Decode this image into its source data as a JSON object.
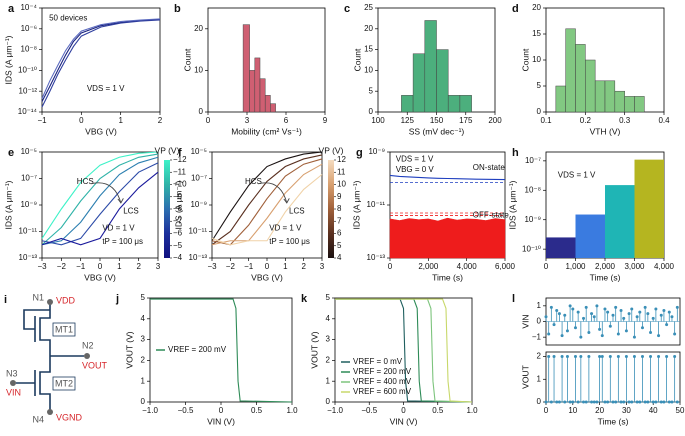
{
  "chart_data": [
    {
      "type": "line",
      "panel": "a",
      "xlabel": "VBG (V)",
      "ylabel": "IDS (A μm⁻¹)",
      "ylog": true,
      "xlim": [
        -1,
        2
      ],
      "xticks": [
        {
          "value": -1,
          "label": "−1"
        },
        0,
        1,
        2
      ],
      "ylim": [
        1e-14,
        0.0001
      ],
      "yticks": [
        {
          "value": 1e-14,
          "label": "10⁻¹⁴"
        },
        {
          "value": 1e-12,
          "label": "10⁻¹²"
        },
        {
          "value": 1e-10,
          "label": "10⁻¹⁰"
        },
        {
          "value": 1e-08,
          "label": "10⁻⁸"
        },
        {
          "value": 1e-06,
          "label": "10⁻⁶"
        },
        {
          "value": 0.0001,
          "label": "10⁻⁴"
        }
      ],
      "x": [
        -1,
        -0.8,
        -0.6,
        -0.4,
        -0.2,
        0,
        0.5,
        1,
        1.5,
        2
      ],
      "series": [
        {
          "color": "#1a237e",
          "values": [
            1e-13,
            3e-12,
            1e-10,
            3e-09,
            6e-08,
            4e-07,
            2e-06,
            4e-06,
            6e-06,
            8e-06
          ]
        },
        {
          "color": "#303f9f",
          "values": [
            3e-14,
            1e-12,
            4e-11,
            1e-09,
            2e-08,
            2e-07,
            1.5e-06,
            3.5e-06,
            5.5e-06,
            7e-06
          ]
        },
        {
          "color": "#5c6bc0",
          "values": [
            2e-13,
            1e-11,
            3e-10,
            8e-09,
            1e-07,
            6e-07,
            2.5e-06,
            5e-06,
            7e-06,
            9e-06
          ]
        }
      ],
      "annotations": [
        "50 devices",
        "VDS = 1 V"
      ]
    },
    {
      "type": "histogram",
      "panel": "b",
      "xlabel": "Mobility (cm² Vs⁻¹)",
      "ylabel": "Count",
      "xlim": [
        0,
        9
      ],
      "xticks": [
        0,
        3,
        6,
        9
      ],
      "ylim": [
        0,
        25
      ],
      "yticks": [
        0,
        10,
        20
      ],
      "bins": [
        2.7,
        3.2,
        3.6,
        4.0,
        4.4,
        4.8,
        5.2
      ],
      "values": [
        21,
        10,
        13,
        8,
        4,
        2
      ],
      "color": "#cf5f72"
    },
    {
      "type": "histogram",
      "panel": "c",
      "xlabel": "SS (mV dec⁻¹)",
      "ylabel": "Count",
      "xlim": [
        100,
        200
      ],
      "xticks": [
        100,
        125,
        150,
        175,
        200
      ],
      "ylim": [
        0,
        25
      ],
      "yticks": [
        0,
        5,
        10,
        15,
        20,
        25
      ],
      "bins": [
        120,
        130,
        140,
        150,
        160,
        170,
        180
      ],
      "values": [
        4,
        14,
        22,
        15,
        4,
        4
      ],
      "color": "#4caf7d"
    },
    {
      "type": "histogram",
      "panel": "d",
      "xlabel": "VTH (V)",
      "ylabel": "Count",
      "xlim": [
        0.1,
        0.4
      ],
      "xticks": [
        0.1,
        0.2,
        0.3,
        0.4
      ],
      "ylim": [
        0,
        20
      ],
      "yticks": [
        0,
        5,
        10,
        15,
        20
      ],
      "bins": [
        0.125,
        0.15,
        0.175,
        0.2,
        0.225,
        0.25,
        0.275,
        0.3,
        0.325,
        0.35
      ],
      "values": [
        5,
        16,
        13,
        10,
        6,
        6,
        4,
        3,
        3
      ],
      "color": "#82c882"
    },
    {
      "type": "line",
      "panel": "e",
      "xlabel": "VBG (V)",
      "ylabel": "IDS (A μm⁻¹)",
      "ylog": true,
      "xlim": [
        -3,
        3
      ],
      "xticks": [
        {
          "value": -3,
          "label": "−3"
        },
        {
          "value": -2,
          "label": "−2"
        },
        {
          "value": -1,
          "label": "−1"
        },
        0,
        1,
        2,
        3
      ],
      "ylim": [
        1e-13,
        1e-05
      ],
      "yticks": [
        {
          "value": 1e-13,
          "label": "10⁻¹³"
        },
        {
          "value": 1e-11,
          "label": "10⁻¹¹"
        },
        {
          "value": 1e-09,
          "label": "10⁻⁹"
        },
        {
          "value": 1e-07,
          "label": "10⁻⁷"
        },
        {
          "value": 1e-05,
          "label": "10⁻⁵"
        }
      ],
      "x": [
        -3,
        -2,
        -1,
        0,
        1,
        2,
        3
      ],
      "series": [
        {
          "color": "#3ef2c8",
          "values": [
            3e-12,
            5e-10,
            5e-08,
            1e-06,
            4e-06,
            8e-06,
            1e-05
          ]
        },
        {
          "color": "#2fb3a8",
          "values": [
            1e-12,
            2e-11,
            2e-09,
            1e-07,
            1e-06,
            4e-06,
            7e-06
          ]
        },
        {
          "color": "#2c7fb0",
          "values": [
            1e-12,
            2e-12,
            5e-11,
            5e-09,
            2e-07,
            1.5e-06,
            4e-06
          ]
        },
        {
          "color": "#2c4ba8",
          "values": [
            2e-12,
            1e-12,
            3e-12,
            2e-10,
            1e-08,
            3e-07,
            1.5e-06
          ]
        },
        {
          "color": "#1a1a9c",
          "values": [
            1e-12,
            3e-12,
            1e-12,
            3e-12,
            5e-10,
            2e-08,
            3e-07
          ]
        }
      ],
      "annotations": [
        "HCS",
        "LCS",
        "VD = 1 V",
        "tP = 100 μs"
      ],
      "colorbar": {
        "title": "VP (V)",
        "lim": [
          -12,
          -4
        ],
        "colors": [
          "#3ef2c8",
          "#2fb3a8",
          "#2c6fb0",
          "#1c2f9c",
          "#101080"
        ],
        "ticks": [
          {
            "value": -12,
            "label": "−12"
          },
          {
            "value": -11,
            "label": "−11"
          },
          {
            "value": -10,
            "label": "−10"
          },
          {
            "value": -9,
            "label": "−9"
          },
          {
            "value": -8,
            "label": "−8"
          },
          {
            "value": -7,
            "label": "−7"
          },
          {
            "value": -6,
            "label": "−6"
          },
          {
            "value": -5,
            "label": "−5"
          },
          {
            "value": -4,
            "label": "−4"
          }
        ]
      }
    },
    {
      "type": "line",
      "panel": "f",
      "xlabel": "VBG (V)",
      "ylabel": "IDS (A μm⁻¹)",
      "ylog": true,
      "xlim": [
        -3,
        3
      ],
      "xticks": [
        {
          "value": -3,
          "label": "−3"
        },
        {
          "value": -2,
          "label": "−2"
        },
        {
          "value": -1,
          "label": "−1"
        },
        0,
        1,
        2,
        3
      ],
      "ylim": [
        1e-13,
        1e-05
      ],
      "yticks": [
        {
          "value": 1e-13,
          "label": "10⁻¹³"
        },
        {
          "value": 1e-11,
          "label": "10⁻¹¹"
        },
        {
          "value": 1e-09,
          "label": "10⁻⁹"
        },
        {
          "value": 1e-07,
          "label": "10⁻⁷"
        },
        {
          "value": 1e-05,
          "label": "10⁻⁵"
        }
      ],
      "x": [
        -3,
        -2,
        -1,
        0,
        1,
        2,
        3
      ],
      "series": [
        {
          "color": "#1a1212",
          "values": [
            2e-12,
            3e-10,
            3e-08,
            8e-07,
            3e-06,
            7e-06,
            1e-05
          ]
        },
        {
          "color": "#5a3020",
          "values": [
            1e-12,
            1e-11,
            1e-09,
            6e-08,
            8e-07,
            3e-06,
            6e-06
          ]
        },
        {
          "color": "#a0603a",
          "values": [
            2e-12,
            1e-12,
            3e-11,
            3e-09,
            1.5e-07,
            1.2e-06,
            3e-06
          ]
        },
        {
          "color": "#d8a070",
          "values": [
            1e-12,
            2e-12,
            2e-12,
            1e-10,
            8e-09,
            2e-07,
            1.2e-06
          ]
        },
        {
          "color": "#f0d2a8",
          "values": [
            3e-12,
            1e-12,
            2e-12,
            2e-12,
            3e-10,
            1.5e-08,
            2e-07
          ]
        }
      ],
      "annotations": [
        "HCS",
        "LCS",
        "VD = 1 V",
        "tP = 100 μs"
      ],
      "colorbar": {
        "title": "VP (V)",
        "lim": [
          12,
          4
        ],
        "colors": [
          "#f5dcc0",
          "#d8a070",
          "#a0603a",
          "#5a3020",
          "#1a1010"
        ],
        "ticks": [
          12,
          11,
          10,
          9,
          8,
          7,
          6,
          5,
          4
        ]
      }
    },
    {
      "type": "line",
      "panel": "g",
      "xlabel": "Time (s)",
      "ylabel": "IDS (A μm⁻¹)",
      "ylog": true,
      "xlim": [
        0,
        6000
      ],
      "xticks": [
        0,
        {
          "value": 2000,
          "label": "2,000"
        },
        {
          "value": 4000,
          "label": "4,000"
        },
        {
          "value": 6000,
          "label": "6,000"
        }
      ],
      "ylim": [
        1e-13,
        1e-09
      ],
      "yticks": [
        {
          "value": 1e-13,
          "label": "10⁻¹³"
        },
        {
          "value": 1e-11,
          "label": "10⁻¹¹"
        },
        {
          "value": 1e-09,
          "label": "10⁻⁹"
        }
      ],
      "x": [
        0,
        500,
        1000,
        1500,
        2000,
        2500,
        3000,
        3500,
        4000,
        4500,
        5000,
        5500,
        6000
      ],
      "series": [
        {
          "color": "#1f3fbf",
          "values": [
            1.3e-10,
            1.2e-10,
            1.15e-10,
            1.1e-10,
            1.05e-10,
            1.02e-10,
            1e-10,
            9.8e-11,
            9.6e-11,
            9.4e-11,
            9.3e-11,
            9.2e-11,
            9.1e-11
          ]
        },
        {
          "color": "#ee1c1c",
          "fill": true,
          "values": [
            3e-12,
            2.6e-12,
            3.1e-12,
            2.8e-12,
            3e-12,
            2.5e-12,
            3.2e-12,
            2.7e-12,
            3e-12,
            2.9e-12,
            2.6e-12,
            3.1e-12,
            2.8e-12
          ]
        }
      ],
      "hlines": [
        {
          "value": 7e-11,
          "color": "#1f3fbf"
        },
        {
          "value": 5e-12,
          "color": "#ee1c1c"
        },
        {
          "value": 4e-12,
          "color": "#ee1c1c"
        }
      ],
      "annotations": [
        "VDS = 1 V",
        "VBG = 0 V",
        "ON-state",
        "OFF-state"
      ]
    },
    {
      "type": "histogram",
      "panel": "h",
      "xlabel": "Time (s)",
      "ylabel": "IDS (A μm⁻¹)",
      "ylog": true,
      "xlim": [
        0,
        4000
      ],
      "xticks": [
        0,
        {
          "value": 1000,
          "label": "1,000"
        },
        {
          "value": 2000,
          "label": "2,000"
        },
        {
          "value": 3000,
          "label": "3,000"
        },
        {
          "value": 4000,
          "label": "4,000"
        }
      ],
      "ylim": [
        5e-11,
        2e-07
      ],
      "yticks": [
        {
          "value": 1e-10,
          "label": "10⁻¹⁰"
        },
        {
          "value": 1e-09,
          "label": "10⁻⁹"
        },
        {
          "value": 1e-08,
          "label": "10⁻⁸"
        },
        {
          "value": 1e-07,
          "label": "10⁻⁷"
        }
      ],
      "bins": [
        0,
        1000,
        2000,
        3000,
        4000
      ],
      "values": [
        2.5e-10,
        1.5e-09,
        1.5e-08,
        1.1e-07
      ],
      "colors": [
        "#2b2b8c",
        "#3a7be0",
        "#1fb5b5",
        "#b5b520"
      ],
      "annotations": [
        "VDS = 1 V"
      ]
    },
    {
      "type": "line",
      "panel": "j",
      "xlabel": "VIN (V)",
      "ylabel": "VOUT (V)",
      "legend": "center-left",
      "xlim": [
        -1,
        1
      ],
      "xticks": [
        {
          "value": -1,
          "label": "−1.0"
        },
        {
          "value": -0.5,
          "label": "−0.5"
        },
        0,
        0.5,
        {
          "value": 1,
          "label": "1.0"
        }
      ],
      "ylim": [
        0,
        5
      ],
      "yticks": [
        0,
        1,
        2,
        3,
        4,
        5
      ],
      "series": [
        {
          "name": "VREF = 200 mV",
          "color": "#2e8b57",
          "x": [
            -1,
            0.17,
            0.21,
            0.24,
            0.27,
            1
          ],
          "values": [
            4.95,
            4.95,
            4.5,
            1,
            0.05,
            0
          ]
        }
      ]
    },
    {
      "type": "line",
      "panel": "k",
      "xlabel": "VIN (V)",
      "ylabel": "VOUT (V)",
      "legend": "lower-left",
      "xlim": [
        -1,
        1
      ],
      "xticks": [
        {
          "value": -1,
          "label": "−1.0"
        },
        {
          "value": -0.5,
          "label": "−0.5"
        },
        0,
        0.5,
        {
          "value": 1,
          "label": "1.0"
        }
      ],
      "ylim": [
        0,
        5
      ],
      "yticks": [
        0,
        1,
        2,
        3,
        4,
        5
      ],
      "series": [
        {
          "name": "VREF = 0 mV",
          "color": "#1f5f5f",
          "x": [
            -1,
            -0.05,
            0,
            0.03,
            0.06,
            1
          ],
          "values": [
            4.95,
            4.95,
            4.5,
            1,
            0.05,
            0
          ]
        },
        {
          "name": "VREF = 200 mV",
          "color": "#2e8b57",
          "x": [
            -1,
            0.15,
            0.2,
            0.23,
            0.26,
            1
          ],
          "values": [
            4.95,
            4.95,
            4.5,
            1,
            0.05,
            0
          ]
        },
        {
          "name": "VREF = 400 mV",
          "color": "#7dc47d",
          "x": [
            -1,
            0.35,
            0.4,
            0.43,
            0.46,
            1
          ],
          "values": [
            4.95,
            4.95,
            4.5,
            1,
            0.05,
            0
          ]
        },
        {
          "name": "VREF = 600 mV",
          "color": "#c8d86a",
          "x": [
            -1,
            0.57,
            0.62,
            0.65,
            0.68,
            1
          ],
          "values": [
            4.95,
            4.95,
            4.5,
            1,
            0.05,
            0
          ]
        }
      ]
    },
    {
      "type": "stem",
      "panel": "l",
      "ylabel": "VIN",
      "color": "#3a8fb7",
      "xlim": [
        0,
        50
      ],
      "ylim": [
        -1.5,
        1.5
      ],
      "yticks": [
        {
          "value": -1,
          "label": "−1"
        },
        0,
        1
      ],
      "x": [
        0,
        1,
        2,
        3,
        4,
        5,
        6,
        7,
        8,
        9,
        10,
        11,
        12,
        13,
        14,
        15,
        16,
        17,
        18,
        19,
        20,
        21,
        22,
        23,
        24,
        25,
        26,
        27,
        28,
        29,
        30,
        31,
        32,
        33,
        34,
        35,
        36,
        37,
        38,
        39,
        40,
        41,
        42,
        43,
        44,
        45,
        46,
        47,
        48,
        49
      ],
      "values": [
        0.3,
        -0.8,
        0.9,
        -0.2,
        0.7,
        0.5,
        -0.9,
        0.4,
        -0.6,
        1.0,
        0.8,
        -0.4,
        0.6,
        -1.0,
        0.2,
        0.9,
        -0.7,
        0.5,
        0.3,
        1.0,
        -0.5,
        -0.9,
        0.8,
        0.6,
        -0.3,
        0.4,
        0.9,
        -0.8,
        0.7,
        0.2,
        -0.6,
        0.5,
        0.8,
        -1.0,
        0.3,
        0.6,
        -0.4,
        0.9,
        0.5,
        -0.7,
        0.2,
        0.8,
        -0.9,
        0.4,
        0.7,
        -0.2,
        0.6,
        0.3,
        -0.8,
        0.9
      ]
    },
    {
      "type": "stem",
      "xlabel": "Time (s)",
      "ylabel": "VOUT",
      "color": "#3a8fb7",
      "xlim": [
        0,
        50
      ],
      "xticks": [
        0,
        10,
        20,
        30,
        40,
        50
      ],
      "ylim": [
        0,
        2.2
      ],
      "yticks": [
        0,
        1,
        2
      ],
      "x": [
        0,
        1,
        2,
        3,
        4,
        5,
        6,
        7,
        8,
        9,
        10,
        11,
        12,
        13,
        14,
        15,
        16,
        17,
        18,
        19,
        20,
        21,
        22,
        23,
        24,
        25,
        26,
        27,
        28,
        29,
        30,
        31,
        32,
        33,
        34,
        35,
        36,
        37,
        38,
        39,
        40,
        41,
        42,
        43,
        44,
        45,
        46,
        47,
        48,
        49
      ],
      "values": [
        0,
        2,
        0,
        2,
        0,
        0,
        2,
        0,
        2,
        0,
        0,
        2,
        0,
        2,
        0,
        0,
        2,
        0,
        0,
        0,
        2,
        2,
        0,
        0,
        2,
        0,
        0,
        2,
        0,
        0,
        2,
        0,
        0,
        2,
        0,
        0,
        2,
        0,
        0,
        2,
        0,
        0,
        2,
        0,
        0,
        2,
        0,
        0,
        2,
        0
      ]
    }
  ],
  "diagram": {
    "panel": "i",
    "n1": "N1",
    "vdd": "VDD",
    "mt1": "MT1",
    "n2": "N2",
    "vout": "VOUT",
    "n3": "N3",
    "vin": "VIN",
    "mt2": "MT2",
    "n4": "N4",
    "vgnd": "VGND"
  }
}
